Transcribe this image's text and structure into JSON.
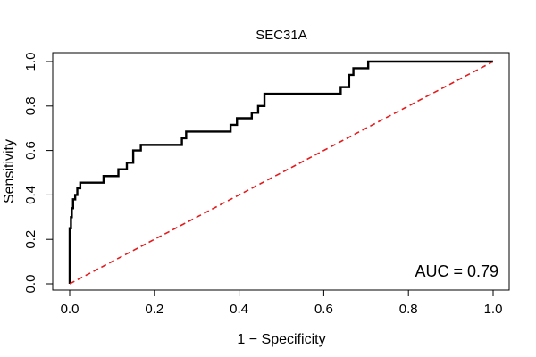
{
  "chart_data": {
    "type": "line",
    "title": "SEC31A",
    "xlabel": "1 − Specificity",
    "ylabel": "Sensitivity",
    "xlim": [
      0,
      1
    ],
    "ylim": [
      0,
      1
    ],
    "x_ticks": [
      "0.0",
      "0.2",
      "0.4",
      "0.6",
      "0.8",
      "1.0"
    ],
    "y_ticks": [
      "0.0",
      "0.2",
      "0.4",
      "0.6",
      "0.8",
      "1.0"
    ],
    "x_tick_values": [
      0,
      0.2,
      0.4,
      0.6,
      0.8,
      1.0
    ],
    "y_tick_values": [
      0,
      0.2,
      0.4,
      0.6,
      0.8,
      1.0
    ],
    "grid": false,
    "annotation": "AUC = 0.79",
    "series": [
      {
        "style": "solid",
        "color": "#000000",
        "x": [
          0.0,
          0.0,
          0.003,
          0.003,
          0.005,
          0.005,
          0.008,
          0.008,
          0.013,
          0.013,
          0.018,
          0.018,
          0.025,
          0.025,
          0.035,
          0.035,
          0.08,
          0.08,
          0.115,
          0.115,
          0.135,
          0.135,
          0.15,
          0.15,
          0.168,
          0.168,
          0.265,
          0.265,
          0.275,
          0.275,
          0.38,
          0.38,
          0.395,
          0.395,
          0.43,
          0.43,
          0.445,
          0.445,
          0.46,
          0.46,
          0.64,
          0.64,
          0.66,
          0.66,
          0.67,
          0.67,
          0.68,
          0.68,
          0.705,
          0.705,
          1.0
        ],
        "y": [
          0.0,
          0.25,
          0.25,
          0.3,
          0.3,
          0.34,
          0.34,
          0.38,
          0.38,
          0.4,
          0.4,
          0.43,
          0.43,
          0.455,
          0.455,
          0.455,
          0.455,
          0.485,
          0.485,
          0.515,
          0.515,
          0.545,
          0.545,
          0.6,
          0.6,
          0.625,
          0.625,
          0.655,
          0.655,
          0.685,
          0.685,
          0.715,
          0.715,
          0.745,
          0.745,
          0.77,
          0.77,
          0.8,
          0.8,
          0.855,
          0.855,
          0.885,
          0.885,
          0.94,
          0.94,
          0.97,
          0.97,
          0.97,
          0.97,
          1.0,
          1.0
        ]
      },
      {
        "style": "dashed",
        "color": "#e41a1c",
        "x": [
          0,
          1
        ],
        "y": [
          0,
          1
        ]
      }
    ]
  }
}
